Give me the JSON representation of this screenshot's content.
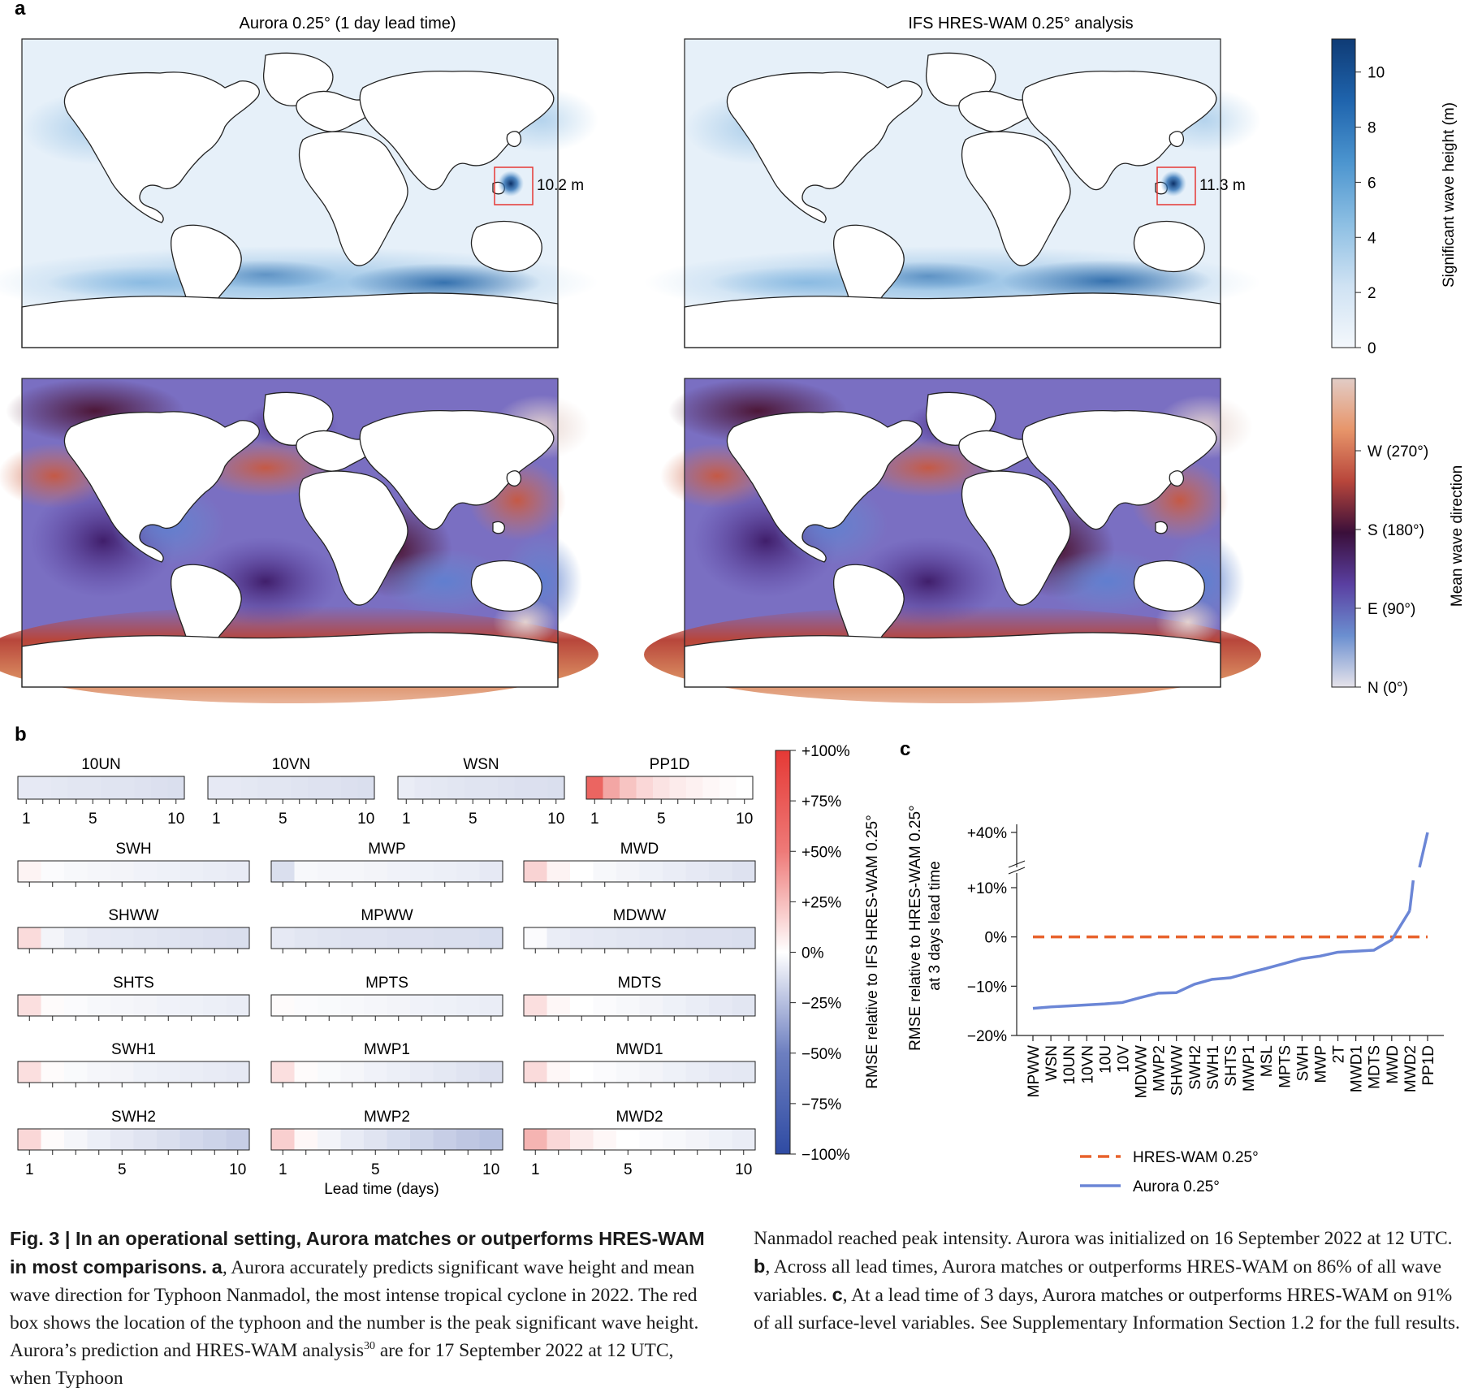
{
  "panel_letters": {
    "a": "a",
    "b": "b",
    "c": "c"
  },
  "colors": {
    "ocean_light": "#eaf3fb",
    "ocean_mid": "#a9cde9",
    "ocean_dark": "#1d5fa3",
    "land": "#ffffff",
    "coast": "#222222",
    "box": "#e53935",
    "hres_line": "#e8622c",
    "aurora_line": "#6b86d6",
    "rmse_red": "#e53935",
    "rmse_blue": "#2f4ba3"
  },
  "panel_a": {
    "left_title": "Aurora 0.25° (1 day lead time)",
    "right_title": "IFS HRES-WAM 0.25° analysis",
    "peak_left": "10.2 m",
    "peak_right": "11.3 m",
    "swh_colorbar": {
      "label": "Significant wave height (m)",
      "ticks": [
        "0",
        "2",
        "4",
        "6",
        "8",
        "10"
      ],
      "range": [
        0,
        11.2
      ],
      "colors": [
        "#f4f8fc",
        "#cfe2f3",
        "#8dbfe3",
        "#4c95cf",
        "#1f64ad",
        "#0f3b75"
      ]
    },
    "mwd_colorbar": {
      "label": "Mean wave direction",
      "ticks": [
        "N (0°)",
        "E (90°)",
        "S (180°)",
        "W (270°)"
      ],
      "colors": [
        "#e6e3ea",
        "#6b8fd0",
        "#5a3fa1",
        "#3a0f3a",
        "#b8463b",
        "#e7956a",
        "#e2ccc6"
      ]
    }
  },
  "panel_b": {
    "xlabel": "Lead time (days)",
    "colorbar_label": "RMSE relative to IFS HRES-WAM 0.25°",
    "colorbar_ticks": [
      "+100%",
      "+75%",
      "+50%",
      "+25%",
      "0%",
      "−25%",
      "−50%",
      "−75%",
      "−100%"
    ],
    "row1": [
      {
        "name": "10UN",
        "values": [
          -0.12,
          -0.12,
          -0.13,
          -0.14,
          -0.14,
          -0.15,
          -0.15,
          -0.16,
          -0.17,
          -0.18
        ]
      },
      {
        "name": "10VN",
        "values": [
          -0.12,
          -0.12,
          -0.13,
          -0.14,
          -0.14,
          -0.15,
          -0.16,
          -0.16,
          -0.17,
          -0.18
        ]
      },
      {
        "name": "WSN",
        "values": [
          -0.1,
          -0.12,
          -0.13,
          -0.14,
          -0.15,
          -0.15,
          -0.16,
          -0.17,
          -0.17,
          -0.18
        ]
      },
      {
        "name": "PP1D",
        "values": [
          0.78,
          0.45,
          0.3,
          0.2,
          0.14,
          0.1,
          0.07,
          0.04,
          0.02,
          0.0
        ]
      }
    ],
    "row1_ticks": [
      "1",
      "5",
      "10"
    ],
    "grid": [
      {
        "name": "SWH",
        "values": [
          0.06,
          -0.02,
          -0.04,
          -0.05,
          -0.06,
          -0.07,
          -0.08,
          -0.09,
          -0.1,
          -0.11
        ]
      },
      {
        "name": "MWP",
        "values": [
          -0.18,
          -0.04,
          -0.05,
          -0.05,
          -0.06,
          -0.07,
          -0.08,
          -0.09,
          -0.1,
          -0.12
        ]
      },
      {
        "name": "MWD",
        "values": [
          0.22,
          0.06,
          0.0,
          -0.04,
          -0.06,
          -0.08,
          -0.1,
          -0.12,
          -0.14,
          -0.16
        ]
      },
      {
        "name": "SHWW",
        "values": [
          0.18,
          -0.06,
          -0.1,
          -0.12,
          -0.13,
          -0.14,
          -0.15,
          -0.16,
          -0.17,
          -0.18
        ]
      },
      {
        "name": "MPWW",
        "values": [
          -0.12,
          -0.14,
          -0.15,
          -0.16,
          -0.16,
          -0.17,
          -0.17,
          -0.18,
          -0.18,
          -0.19
        ]
      },
      {
        "name": "MDWW",
        "values": [
          -0.02,
          -0.1,
          -0.12,
          -0.13,
          -0.14,
          -0.15,
          -0.16,
          -0.17,
          -0.17,
          -0.18
        ]
      },
      {
        "name": "SHTS",
        "values": [
          0.16,
          0.02,
          -0.02,
          -0.04,
          -0.05,
          -0.06,
          -0.07,
          -0.08,
          -0.09,
          -0.1
        ]
      },
      {
        "name": "MPTS",
        "values": [
          0.02,
          -0.02,
          -0.03,
          -0.04,
          -0.05,
          -0.06,
          -0.07,
          -0.08,
          -0.09,
          -0.1
        ]
      },
      {
        "name": "MDTS",
        "values": [
          0.16,
          0.04,
          0.0,
          -0.02,
          -0.04,
          -0.06,
          -0.08,
          -0.1,
          -0.12,
          -0.14
        ]
      },
      {
        "name": "SWH1",
        "values": [
          0.16,
          0.02,
          -0.03,
          -0.05,
          -0.06,
          -0.08,
          -0.09,
          -0.1,
          -0.11,
          -0.12
        ]
      },
      {
        "name": "MWP1",
        "values": [
          0.16,
          0.02,
          -0.03,
          -0.05,
          -0.07,
          -0.09,
          -0.11,
          -0.13,
          -0.15,
          -0.17
        ]
      },
      {
        "name": "MWD1",
        "values": [
          0.18,
          0.04,
          0.0,
          -0.02,
          -0.04,
          -0.06,
          -0.08,
          -0.1,
          -0.12,
          -0.13
        ]
      },
      {
        "name": "SWH2",
        "values": [
          0.2,
          0.02,
          -0.05,
          -0.09,
          -0.12,
          -0.15,
          -0.18,
          -0.21,
          -0.24,
          -0.27
        ]
      },
      {
        "name": "MWP2",
        "values": [
          0.24,
          0.04,
          -0.06,
          -0.11,
          -0.15,
          -0.19,
          -0.23,
          -0.27,
          -0.31,
          -0.34
        ]
      },
      {
        "name": "MWD2",
        "values": [
          0.38,
          0.2,
          0.1,
          0.04,
          0.0,
          -0.02,
          -0.04,
          -0.06,
          -0.08,
          -0.1
        ]
      }
    ],
    "grid_ticks": [
      "1",
      "5",
      "10"
    ]
  },
  "chart_data": {
    "type": "line",
    "ylabel": "RMSE relative to HRES-WAM 0.25° at 3 days lead time",
    "y_ticks": [
      "−20%",
      "−10%",
      "0%",
      "+10%",
      "+40%"
    ],
    "categories": [
      "MPWW",
      "WSN",
      "10UN",
      "10VN",
      "10U",
      "10V",
      "MDWW",
      "MWP2",
      "SHWW",
      "SWH2",
      "SWH1",
      "SHTS",
      "MWP1",
      "MSL",
      "MPTS",
      "SWH",
      "MWP",
      "2T",
      "MWD1",
      "MDTS",
      "MWD",
      "MWD2",
      "PP1D"
    ],
    "series": [
      {
        "name": "HRES-WAM 0.25°",
        "values": [
          0,
          0,
          0,
          0,
          0,
          0,
          0,
          0,
          0,
          0,
          0,
          0,
          0,
          0,
          0,
          0,
          0,
          0,
          0,
          0,
          0,
          0,
          0
        ]
      },
      {
        "name": "Aurora 0.25°",
        "values": [
          -14.5,
          -14.2,
          -14.0,
          -13.8,
          -13.6,
          -13.3,
          -12.3,
          -11.4,
          -11.3,
          -9.6,
          -8.6,
          -8.3,
          -7.3,
          -6.4,
          -5.4,
          -4.4,
          -3.9,
          -3.1,
          -2.9,
          -2.7,
          -0.6,
          5.3,
          40
        ]
      }
    ],
    "ylim": [
      -20,
      40
    ],
    "axis_break": [
      10,
      40
    ],
    "legend": "bottom"
  },
  "caption": {
    "fig": "Fig. 3 | In an operational setting, Aurora matches or outperforms HRES-WAM in most comparisons.",
    "a_lbl": "a",
    "a_txt": ", Aurora accurately predicts significant wave height and mean wave direction for Typhoon Nanmadol, the most intense tropical cyclone in 2022. The red box shows the location of the typhoon and the number is the peak significant wave height. Aurora’s prediction and HRES-WAM analysis",
    "ref": "30",
    "a_txt2": " are for 17 September 2022 at 12 UTC, when Typhoon",
    "cont": "Nanmadol reached peak intensity. Aurora was initialized on 16 September 2022 at 12 UTC. ",
    "b_lbl": "b",
    "b_txt": ", Across all lead times, Aurora matches or outperforms HRES-WAM on 86% of all wave variables. ",
    "c_lbl": "c",
    "c_txt": ", At a lead time of 3 days, Aurora matches or outperforms HRES-WAM on 91% of all surface-level variables. See Supplementary Information Section 1.2 for the full results."
  }
}
